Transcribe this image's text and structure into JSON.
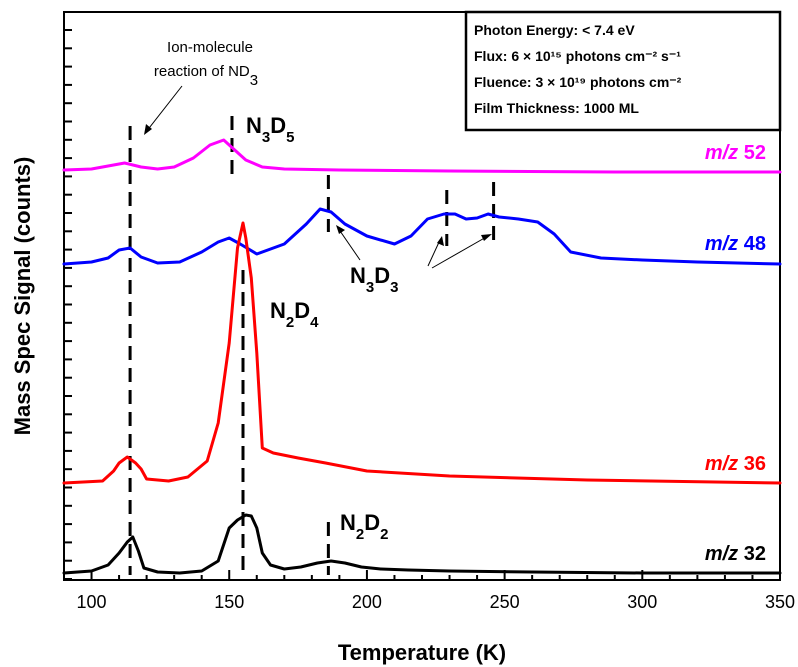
{
  "chart_data": {
    "type": "line",
    "xlabel": "Temperature (K)",
    "ylabel": "Mass Spec Signal (counts)",
    "xlim": [
      90,
      350
    ],
    "xticks": [
      "100",
      "150",
      "200",
      "250",
      "300",
      "350"
    ],
    "legend_box": {
      "placement": "top-right",
      "lines": [
        "Photon Energy: < 7.4 eV",
        "Flux: 6 × 10¹⁵ photons cm⁻² s⁻¹",
        "Fluence: 3 × 10¹⁹ photons cm⁻²",
        "Film Thickness: 1000 ML"
      ]
    },
    "series": [
      {
        "name_prefix": "m/z",
        "name_value": "52",
        "color": "#ff00ff",
        "x": [
          90,
          100,
          106,
          112,
          118,
          124,
          130,
          137,
          143,
          148,
          152,
          156,
          162,
          170,
          190,
          230,
          290,
          350
        ],
        "y": [
          0.02,
          0.03,
          0.06,
          0.09,
          0.05,
          0.03,
          0.05,
          0.14,
          0.27,
          0.32,
          0.22,
          0.12,
          0.05,
          0.03,
          0.02,
          0.01,
          0.0,
          0.0
        ]
      },
      {
        "name_prefix": "m/z",
        "name_value": "48",
        "color": "#0000ff",
        "x": [
          90,
          100,
          106,
          110,
          114,
          118,
          124,
          132,
          140,
          146,
          150,
          154,
          160,
          170,
          178,
          183,
          187,
          192,
          200,
          210,
          216,
          222,
          228,
          232,
          236,
          240,
          244,
          248,
          255,
          262,
          268,
          274,
          285,
          300,
          320,
          350
        ],
        "y": [
          0.0,
          0.02,
          0.06,
          0.14,
          0.16,
          0.07,
          0.01,
          0.02,
          0.12,
          0.22,
          0.26,
          0.2,
          0.1,
          0.2,
          0.4,
          0.55,
          0.52,
          0.4,
          0.28,
          0.2,
          0.28,
          0.45,
          0.5,
          0.5,
          0.45,
          0.46,
          0.5,
          0.47,
          0.45,
          0.42,
          0.3,
          0.12,
          0.06,
          0.04,
          0.02,
          0.0
        ]
      },
      {
        "name_prefix": "m/z",
        "name_value": "36",
        "color": "#ff0000",
        "x": [
          90,
          104,
          108,
          110,
          113,
          116,
          118,
          120,
          128,
          135,
          142,
          146,
          150,
          153,
          155,
          156,
          158,
          160,
          162,
          166,
          175,
          185,
          200,
          230,
          280,
          350
        ],
        "y": [
          0.0,
          0.02,
          0.12,
          0.2,
          0.26,
          0.2,
          0.14,
          0.04,
          0.02,
          0.06,
          0.22,
          0.6,
          1.4,
          2.35,
          2.6,
          2.45,
          2.05,
          1.3,
          0.35,
          0.3,
          0.25,
          0.2,
          0.12,
          0.07,
          0.03,
          0.0
        ]
      },
      {
        "name_prefix": "m/z",
        "name_value": "32",
        "color": "#000000",
        "x": [
          90,
          100,
          106,
          110,
          113,
          115,
          117,
          119,
          124,
          132,
          140,
          146,
          150,
          153,
          156,
          158,
          160,
          162,
          165,
          170,
          176,
          182,
          187,
          192,
          198,
          205,
          215,
          230,
          260,
          300,
          350
        ],
        "y": [
          0.0,
          0.02,
          0.08,
          0.2,
          0.31,
          0.36,
          0.22,
          0.05,
          0.01,
          0.0,
          0.02,
          0.12,
          0.45,
          0.53,
          0.58,
          0.57,
          0.45,
          0.2,
          0.08,
          0.04,
          0.06,
          0.1,
          0.12,
          0.1,
          0.06,
          0.04,
          0.03,
          0.02,
          0.01,
          0.0,
          0.0
        ]
      }
    ],
    "annotations": {
      "ion_molecule_line1": "Ion-molecule",
      "ion_molecule_line2": "reaction of ND",
      "ion_molecule_sub": "3",
      "n3d5": {
        "base": "N",
        "s1": "3",
        "mid": "D",
        "s2": "5"
      },
      "n3d3": {
        "base": "N",
        "s1": "3",
        "mid": "D",
        "s2": "3"
      },
      "n2d4": {
        "base": "N",
        "s1": "2",
        "mid": "D",
        "s2": "4"
      },
      "n2d2": {
        "base": "N",
        "s1": "2",
        "mid": "D",
        "s2": "2"
      }
    },
    "marker_temperatures": [
      114,
      151,
      155,
      186,
      229,
      246
    ]
  }
}
